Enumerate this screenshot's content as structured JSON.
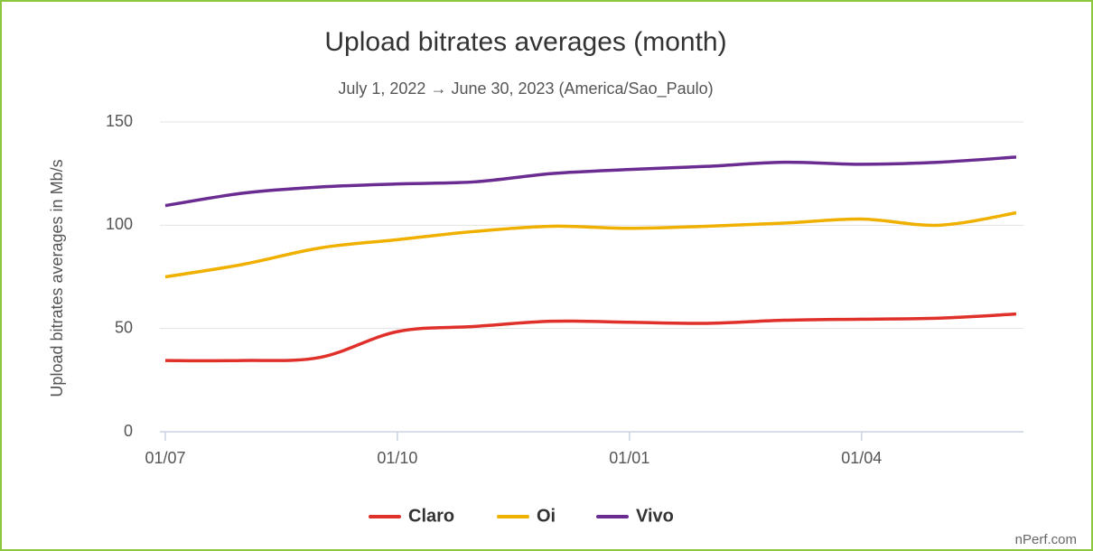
{
  "chart_data": {
    "type": "line",
    "title": "Upload bitrates averages (month)",
    "subtitle": "July 1, 2022 → June 30, 2023 (America/Sao_Paulo)",
    "y_label": "Upload bitrates averages in Mb/s",
    "credit": "nPerf.com",
    "categories": [
      "01/07",
      null,
      null,
      "01/10",
      null,
      null,
      "01/01",
      null,
      null,
      "01/04",
      null,
      null
    ],
    "series": [
      {
        "name": "Claro",
        "color": "#e0302a",
        "values": [
          34.5,
          34.5,
          36,
          48.5,
          51,
          53.5,
          53,
          52.5,
          54,
          54.5,
          55,
          57
        ]
      },
      {
        "name": "Oi",
        "color": "#f0b000",
        "values": [
          75,
          81,
          89,
          93,
          97,
          99.5,
          98.5,
          99.5,
          101,
          103,
          100,
          106
        ]
      },
      {
        "name": "Vivo",
        "color": "#6a2c91",
        "values": [
          109.5,
          115.5,
          118.5,
          120,
          121,
          125,
          127,
          128.5,
          130.5,
          129.5,
          130.5,
          133
        ]
      }
    ],
    "ylim": [
      0,
      150
    ],
    "yticks": [
      0,
      50,
      100,
      150
    ],
    "grid": true,
    "legend": "bottom"
  }
}
